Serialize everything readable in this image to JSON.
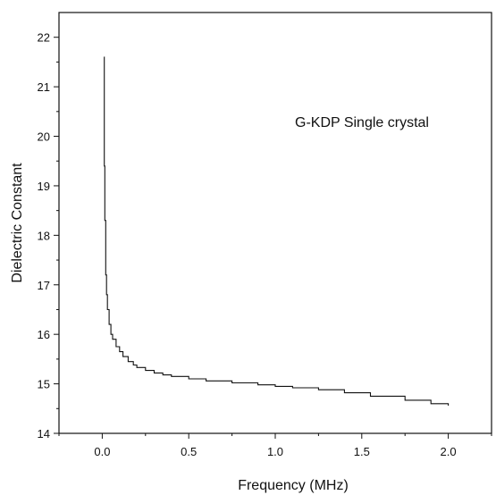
{
  "chart_data": {
    "type": "line",
    "title": "",
    "annotation": "G-KDP Single crystal",
    "xlabel": "Frequency (MHz)",
    "ylabel": "Dielectric Constant",
    "xlim": [
      -0.25,
      2.25
    ],
    "ylim": [
      14,
      22.5
    ],
    "x_ticks": [
      "0.0",
      "0.5",
      "1.0",
      "1.5",
      "2.0"
    ],
    "x_tick_values": [
      0.0,
      0.5,
      1.0,
      1.5,
      2.0
    ],
    "y_ticks": [
      "14",
      "15",
      "16",
      "17",
      "18",
      "19",
      "20",
      "21",
      "22"
    ],
    "y_tick_values": [
      14,
      15,
      16,
      17,
      18,
      19,
      20,
      21,
      22
    ],
    "grid": false,
    "legend": "none",
    "line_color": "#111111",
    "series": [
      {
        "x": [
          0.01,
          0.012,
          0.015,
          0.02,
          0.025,
          0.03,
          0.04,
          0.05,
          0.06,
          0.08,
          0.1,
          0.12,
          0.15,
          0.18,
          0.2,
          0.25,
          0.3,
          0.35,
          0.4,
          0.5,
          0.6,
          0.75,
          0.9,
          1.0,
          1.1,
          1.25,
          1.4,
          1.55,
          1.75,
          1.9,
          2.0
        ],
        "y": [
          21.6,
          19.4,
          18.3,
          17.2,
          16.8,
          16.5,
          16.2,
          16.0,
          15.9,
          15.75,
          15.65,
          15.55,
          15.45,
          15.38,
          15.33,
          15.27,
          15.22,
          15.18,
          15.15,
          15.1,
          15.06,
          15.02,
          14.98,
          14.95,
          14.92,
          14.88,
          14.82,
          14.75,
          14.67,
          14.6,
          14.56
        ]
      }
    ]
  }
}
